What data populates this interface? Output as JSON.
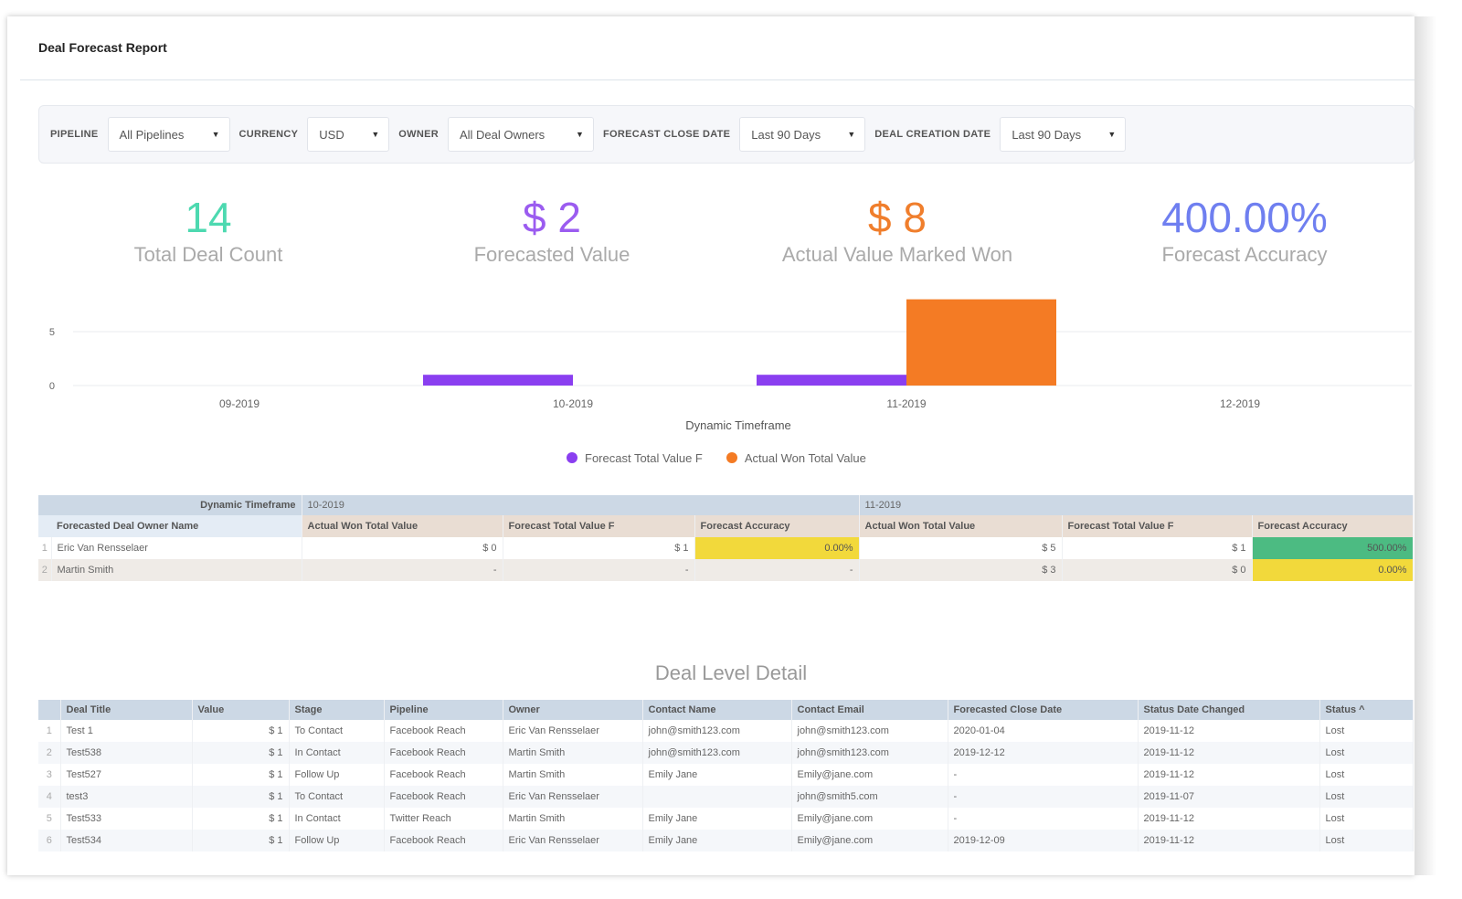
{
  "title": "Deal Forecast Report",
  "filters": [
    {
      "label": "PIPELINE",
      "value": "All Pipelines"
    },
    {
      "label": "CURRENCY",
      "value": "USD"
    },
    {
      "label": "OWNER",
      "value": "All Deal Owners"
    },
    {
      "label": "FORECAST CLOSE DATE",
      "value": "Last 90 Days"
    },
    {
      "label": "DEAL CREATION DATE",
      "value": "Last 90 Days"
    }
  ],
  "kpis": [
    {
      "value": "14",
      "label": "Total Deal Count",
      "color": "#4dd9b0"
    },
    {
      "value": "$ 2",
      "label": "Forecasted Value",
      "color": "#9b5cf0"
    },
    {
      "value": "$ 8",
      "label": "Actual Value Marked Won",
      "color": "#f07e2c"
    },
    {
      "value": "400.00%",
      "label": "Forecast Accuracy",
      "color": "#6f7ff0"
    }
  ],
  "chart_data": {
    "type": "bar",
    "xlabel": "Dynamic Timeframe",
    "categories": [
      "09-2019",
      "10-2019",
      "11-2019",
      "12-2019"
    ],
    "ylim": [
      0,
      8
    ],
    "yticks": [
      0,
      5
    ],
    "grid": true,
    "legend": "bottom",
    "series": [
      {
        "name": "Forecast Total Value F",
        "color": "#8a3ff0",
        "values": [
          0,
          1,
          1,
          0
        ]
      },
      {
        "name": "Actual Won Total Value",
        "color": "#f47b24",
        "values": [
          0,
          0,
          8,
          0
        ]
      }
    ]
  },
  "pivot": {
    "corner_label": "Dynamic Timeframe",
    "row_header": "Forecasted Deal Owner Name",
    "periods": [
      "10-2019",
      "11-2019"
    ],
    "measures": [
      "Actual Won Total Value",
      "Forecast Total Value F",
      "Forecast Accuracy"
    ],
    "rows": [
      {
        "n": "1",
        "name": "Eric Van Rensselaer",
        "cells": [
          "$ 0",
          "$ 1",
          "0.00%",
          "$ 5",
          "$ 1",
          "500.00%"
        ],
        "acc_colors": [
          "#f2d93b",
          "#4cbb82"
        ]
      },
      {
        "n": "2",
        "name": "Martin Smith",
        "cells": [
          "-",
          "-",
          "-",
          "$ 3",
          "$ 0",
          "0.00%"
        ],
        "acc_colors": [
          "",
          "#f2d93b"
        ]
      }
    ]
  },
  "detail": {
    "title": "Deal Level Detail",
    "columns": [
      "Deal Title",
      "Value",
      "Stage",
      "Pipeline",
      "Owner",
      "Contact Name",
      "Contact Email",
      "Forecasted Close Date",
      "Status Date Changed",
      "Status ^"
    ],
    "rows": [
      [
        "1",
        "Test 1",
        "$ 1",
        "To Contact",
        "Facebook Reach",
        "Eric Van Rensselaer",
        "john@smith123.com",
        "john@smith123.com",
        "2020-01-04",
        "2019-11-12",
        "Lost"
      ],
      [
        "2",
        "Test538",
        "$ 1",
        "In Contact",
        "Facebook Reach",
        "Martin Smith",
        "john@smith123.com",
        "john@smith123.com",
        "2019-12-12",
        "2019-11-12",
        "Lost"
      ],
      [
        "3",
        "Test527",
        "$ 1",
        "Follow Up",
        "Facebook Reach",
        "Martin Smith",
        "Emily Jane",
        "Emily@jane.com",
        "-",
        "2019-11-12",
        "Lost"
      ],
      [
        "4",
        "test3",
        "$ 1",
        "To Contact",
        "Facebook Reach",
        "Eric Van Rensselaer",
        "",
        "john@smith5.com",
        "-",
        "2019-11-07",
        "Lost"
      ],
      [
        "5",
        "Test533",
        "$ 1",
        "In Contact",
        "Twitter Reach",
        "Martin Smith",
        "Emily Jane",
        "Emily@jane.com",
        "-",
        "2019-11-12",
        "Lost"
      ],
      [
        "6",
        "Test534",
        "$ 1",
        "Follow Up",
        "Facebook Reach",
        "Eric Van Rensselaer",
        "Emily Jane",
        "Emily@jane.com",
        "2019-12-09",
        "2019-11-12",
        "Lost"
      ]
    ]
  }
}
